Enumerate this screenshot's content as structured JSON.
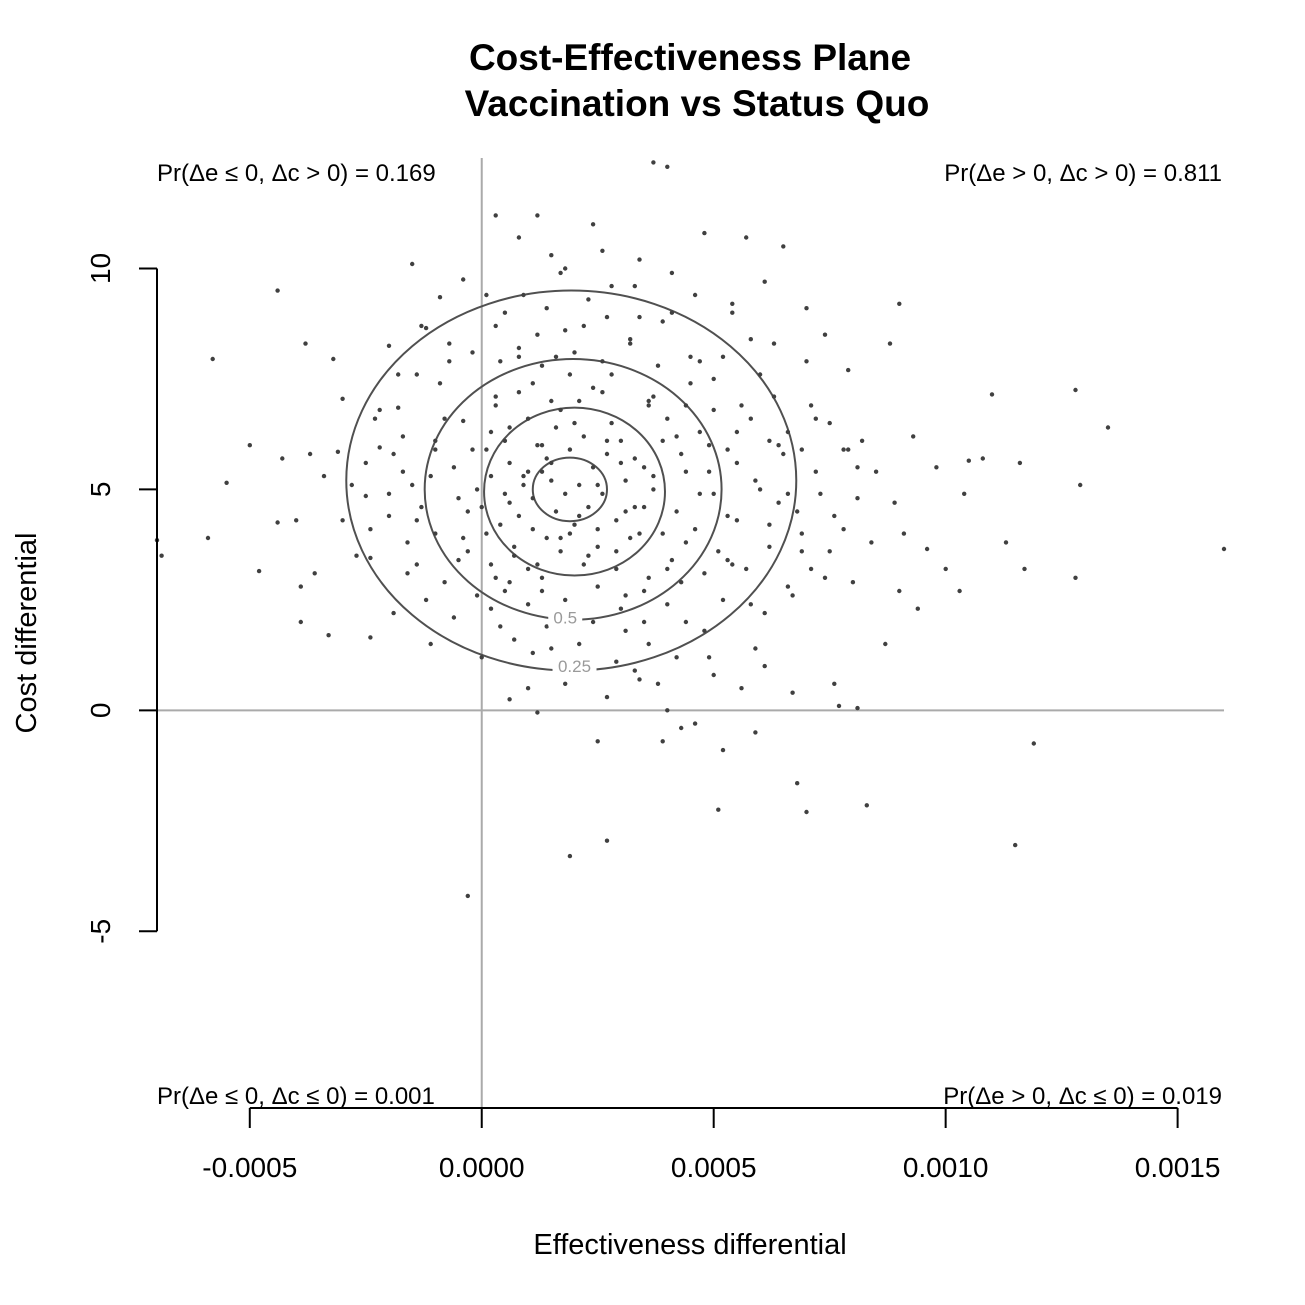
{
  "chart_data": {
    "type": "scatter",
    "title": "Cost-Effectiveness Plane",
    "subtitle": "Vaccination vs Status Quo",
    "xlabel": "Effectiveness differential",
    "ylabel": "Cost differential",
    "xlim": [
      -0.0007,
      0.0016
    ],
    "ylim": [
      -9,
      12.5
    ],
    "xticks": [
      -0.0005,
      0.0,
      0.0005,
      0.001,
      0.0015
    ],
    "xtick_labels": [
      "-0.0005",
      "0.0000",
      "0.0005",
      "0.0010",
      "0.0015"
    ],
    "yticks": [
      -5,
      0,
      5,
      10
    ],
    "ytick_labels": [
      "-5",
      "0",
      "5",
      "10"
    ],
    "reference_lines": {
      "x": 0,
      "y": 0,
      "color": "#aaaaaa"
    },
    "point_color": "#404040",
    "contour_color": "#505050",
    "contour_label_color": "#9a9a9a",
    "quadrants": {
      "top_left": {
        "expr": "Pr(Δe ≤ 0, Δc > 0)",
        "value": "0.169"
      },
      "top_right": {
        "expr": "Pr(Δe > 0, Δc > 0)",
        "value": "0.811"
      },
      "bottom_left": {
        "expr": "Pr(Δe ≤ 0, Δc ≤ 0)",
        "value": "0.001"
      },
      "bottom_right": {
        "expr": "Pr(Δe > 0, Δc ≤ 0)",
        "value": "0.019"
      }
    },
    "contours": [
      {
        "level": "0.25",
        "label": "0.25",
        "cx": 0.000193,
        "cy": 5.2,
        "rx": 0.000485,
        "ry": 4.3,
        "label_x": 0.0002,
        "label_y": 1.0
      },
      {
        "level": "0.5",
        "label": "0.5",
        "cx": 0.000197,
        "cy": 5.0,
        "rx": 0.00032,
        "ry": 2.95,
        "label_x": 0.00018,
        "label_y": 2.1
      },
      {
        "level": "0.75",
        "label": "",
        "cx": 0.0002,
        "cy": 4.95,
        "rx": 0.000195,
        "ry": 1.9
      },
      {
        "level": "0.95",
        "label": "",
        "cx": 0.00019,
        "cy": 5.0,
        "rx": 8e-05,
        "ry": 0.72
      }
    ],
    "points": [
      [
        -0.00069,
        3.5
      ],
      [
        -0.0007,
        3.85
      ],
      [
        -0.00059,
        3.9
      ],
      [
        -0.00058,
        7.95
      ],
      [
        -0.00055,
        5.15
      ],
      [
        -0.0005,
        6.0
      ],
      [
        -0.00048,
        3.15
      ],
      [
        -0.00044,
        9.5
      ],
      [
        -0.00044,
        4.25
      ],
      [
        -0.00043,
        5.7
      ],
      [
        -0.0004,
        4.3
      ],
      [
        -0.00039,
        2.8
      ],
      [
        -0.00039,
        2.0
      ],
      [
        -0.00038,
        8.3
      ],
      [
        -0.00037,
        5.8
      ],
      [
        -0.00036,
        3.1
      ],
      [
        -0.00034,
        5.3
      ],
      [
        -0.00033,
        1.7
      ],
      [
        -0.00032,
        7.95
      ],
      [
        -0.00031,
        5.85
      ],
      [
        -0.0003,
        4.3
      ],
      [
        -0.0003,
        7.05
      ],
      [
        -0.00028,
        5.1
      ],
      [
        -0.00027,
        3.5
      ],
      [
        -0.00025,
        4.85
      ],
      [
        -0.00024,
        3.45
      ],
      [
        -0.00024,
        1.65
      ],
      [
        -0.00023,
        6.6
      ],
      [
        -0.00022,
        5.95
      ],
      [
        -0.0002,
        8.25
      ],
      [
        -0.0002,
        4.4
      ],
      [
        -0.00019,
        2.2
      ],
      [
        -0.00018,
        6.85
      ],
      [
        -0.00017,
        5.4
      ],
      [
        -0.00016,
        3.8
      ],
      [
        -0.00015,
        10.1
      ],
      [
        -0.00014,
        7.6
      ],
      [
        -0.00014,
        3.3
      ],
      [
        -0.00013,
        4.6
      ],
      [
        -0.00012,
        8.65
      ],
      [
        -0.00011,
        1.5
      ],
      [
        -0.0001,
        6.1
      ],
      [
        -0.0001,
        4.0
      ],
      [
        -9e-05,
        9.35
      ],
      [
        -8e-05,
        2.9
      ],
      [
        -7e-05,
        7.9
      ],
      [
        -6e-05,
        5.5
      ],
      [
        -5e-05,
        3.4
      ],
      [
        -4e-05,
        9.75
      ],
      [
        -4e-05,
        6.55
      ],
      [
        -3e-05,
        -4.2
      ],
      [
        -3e-05,
        4.5
      ],
      [
        -2e-05,
        8.1
      ],
      [
        -1e-05,
        2.6
      ],
      [
        0.0,
        1.2
      ],
      [
        1e-05,
        9.4
      ],
      [
        1e-05,
        5.9
      ],
      [
        2e-05,
        3.3
      ],
      [
        3e-05,
        11.2
      ],
      [
        3e-05,
        7.1
      ],
      [
        4e-05,
        1.9
      ],
      [
        5e-05,
        4.9
      ],
      [
        5e-05,
        9.0
      ],
      [
        6e-05,
        6.4
      ],
      [
        6e-05,
        0.25
      ],
      [
        7e-05,
        3.7
      ],
      [
        8e-05,
        10.7
      ],
      [
        8e-05,
        8.2
      ],
      [
        9e-05,
        5.3
      ],
      [
        0.0001,
        2.4
      ],
      [
        0.0001,
        0.5
      ],
      [
        0.00011,
        7.4
      ],
      [
        0.00011,
        4.1
      ],
      [
        0.00012,
        11.2
      ],
      [
        0.00012,
        -0.05
      ],
      [
        0.00013,
        6.0
      ],
      [
        0.00013,
        3.0
      ],
      [
        0.00014,
        9.1
      ],
      [
        0.00015,
        1.4
      ],
      [
        0.00015,
        5.6
      ],
      [
        0.00016,
        8.0
      ],
      [
        0.00017,
        3.9
      ],
      [
        0.00018,
        10.0
      ],
      [
        0.00018,
        0.6
      ],
      [
        0.00019,
        -3.3
      ],
      [
        0.0002,
        6.5
      ],
      [
        0.0002,
        2.1
      ],
      [
        0.00021,
        4.4
      ],
      [
        0.00022,
        8.7
      ],
      [
        0.00023,
        1.0
      ],
      [
        0.00024,
        11.0
      ],
      [
        0.00025,
        -0.7
      ],
      [
        0.00025,
        5.1
      ],
      [
        0.00026,
        7.2
      ],
      [
        0.00027,
        -2.95
      ],
      [
        0.00027,
        0.3
      ],
      [
        0.00028,
        9.6
      ],
      [
        0.00029,
        3.6
      ],
      [
        0.0003,
        6.1
      ],
      [
        0.00031,
        1.8
      ],
      [
        0.00032,
        8.4
      ],
      [
        0.00033,
        4.6
      ],
      [
        0.00034,
        10.2
      ],
      [
        0.00034,
        0.7
      ],
      [
        0.00035,
        2.7
      ],
      [
        0.00036,
        7.0
      ],
      [
        0.00037,
        12.4
      ],
      [
        0.00037,
        5.3
      ],
      [
        0.00038,
        0.6
      ],
      [
        0.00039,
        -0.7
      ],
      [
        0.0004,
        12.3
      ],
      [
        0.0004,
        0.0
      ],
      [
        0.0004,
        3.2
      ],
      [
        0.00041,
        9.0
      ],
      [
        0.00042,
        6.2
      ],
      [
        0.00043,
        -0.4
      ],
      [
        0.00044,
        2.0
      ],
      [
        0.00045,
        8.0
      ],
      [
        0.00046,
        -0.3
      ],
      [
        0.00047,
        4.9
      ],
      [
        0.00048,
        10.8
      ],
      [
        0.00049,
        1.2
      ],
      [
        0.0005,
        6.8
      ],
      [
        0.0005,
        0.8
      ],
      [
        0.00051,
        -2.25
      ],
      [
        0.00052,
        -0.9
      ],
      [
        0.00053,
        3.4
      ],
      [
        0.00054,
        9.2
      ],
      [
        0.00055,
        5.6
      ],
      [
        0.00056,
        0.5
      ],
      [
        0.00057,
        10.7
      ],
      [
        0.00058,
        2.4
      ],
      [
        0.00059,
        -0.5
      ],
      [
        0.0006,
        7.6
      ],
      [
        0.00061,
        1.0
      ],
      [
        0.00062,
        4.2
      ],
      [
        0.00063,
        8.3
      ],
      [
        0.00064,
        6.0
      ],
      [
        0.00065,
        10.5
      ],
      [
        0.00066,
        2.8
      ],
      [
        0.00067,
        0.4
      ],
      [
        0.00068,
        -1.65
      ],
      [
        0.00069,
        4.0
      ],
      [
        0.0007,
        9.1
      ],
      [
        0.0007,
        -2.3
      ],
      [
        0.00071,
        3.2
      ],
      [
        0.00072,
        6.6
      ],
      [
        0.00073,
        4.9
      ],
      [
        0.00074,
        8.5
      ],
      [
        0.00075,
        3.6
      ],
      [
        0.00076,
        0.6
      ],
      [
        0.00077,
        0.1
      ],
      [
        0.00078,
        5.9
      ],
      [
        0.00079,
        7.7
      ],
      [
        0.0008,
        2.9
      ],
      [
        0.00081,
        4.8
      ],
      [
        0.00081,
        0.05
      ],
      [
        0.00082,
        6.1
      ],
      [
        0.00083,
        -2.15
      ],
      [
        0.00084,
        3.8
      ],
      [
        0.00085,
        5.4
      ],
      [
        0.00087,
        1.5
      ],
      [
        0.00088,
        8.3
      ],
      [
        0.00089,
        4.7
      ],
      [
        0.0009,
        2.7
      ],
      [
        0.0009,
        9.2
      ],
      [
        0.00091,
        4.0
      ],
      [
        0.00093,
        6.2
      ],
      [
        0.00094,
        2.3
      ],
      [
        0.00096,
        3.65
      ],
      [
        0.00098,
        5.5
      ],
      [
        0.001,
        3.2
      ],
      [
        0.00103,
        2.7
      ],
      [
        0.00104,
        4.9
      ],
      [
        0.00105,
        5.65
      ],
      [
        0.00108,
        5.7
      ],
      [
        0.0011,
        7.15
      ],
      [
        0.00113,
        3.8
      ],
      [
        0.00115,
        -3.05
      ],
      [
        0.00116,
        5.6
      ],
      [
        0.00117,
        3.2
      ],
      [
        0.00119,
        -0.75
      ],
      [
        0.00128,
        7.25
      ],
      [
        0.00128,
        3.0
      ],
      [
        0.00129,
        5.1
      ],
      [
        0.00135,
        6.4
      ],
      [
        0.0016,
        3.65
      ],
      [
        0.00018,
        4.9
      ],
      [
        0.00015,
        5.2
      ],
      [
        0.00021,
        5.1
      ],
      [
        0.00023,
        4.6
      ],
      [
        0.00016,
        4.5
      ],
      [
        0.00013,
        5.4
      ],
      [
        0.00024,
        5.5
      ],
      [
        0.0002,
        4.2
      ],
      [
        0.00011,
        4.8
      ],
      [
        0.00026,
        4.9
      ],
      [
        0.00019,
        5.9
      ],
      [
        0.00014,
        3.9
      ],
      [
        0.00027,
        5.8
      ],
      [
        9e-05,
        5.1
      ],
      [
        0.00029,
        4.3
      ],
      [
        0.00022,
        6.2
      ],
      [
        8e-05,
        4.4
      ],
      [
        0.00031,
        5.2
      ],
      [
        0.00017,
        3.6
      ],
      [
        0.00012,
        6.0
      ],
      [
        0.00033,
        5.7
      ],
      [
        6e-05,
        5.6
      ],
      [
        0.00025,
        3.7
      ],
      [
        0.00035,
        4.6
      ],
      [
        4e-05,
        4.2
      ],
      [
        0.00028,
        6.5
      ],
      [
        0.0001,
        6.6
      ],
      [
        0.00037,
        5.0
      ],
      [
        2e-05,
        5.3
      ],
      [
        0.00032,
        3.9
      ],
      [
        7e-05,
        3.5
      ],
      [
        0.00039,
        6.1
      ],
      [
        0.0,
        4.6
      ],
      [
        0.00036,
        6.9
      ],
      [
        0.00015,
        7.0
      ],
      [
        0.00042,
        4.5
      ],
      [
        -2e-05,
        5.9
      ],
      [
        0.00024,
        7.3
      ],
      [
        0.00044,
        5.4
      ],
      [
        3e-05,
        6.9
      ],
      [
        0.00041,
        3.4
      ],
      [
        0.00047,
        6.3
      ],
      [
        -5e-05,
        4.8
      ],
      [
        0.0005,
        4.9
      ],
      [
        0.00045,
        7.4
      ],
      [
        0.00053,
        5.9
      ],
      [
        -8e-05,
        6.6
      ],
      [
        0.00055,
        4.3
      ],
      [
        6e-05,
        2.9
      ],
      [
        0.00058,
        6.6
      ],
      [
        0.0006,
        5.0
      ],
      [
        -0.00011,
        5.3
      ],
      [
        0.00062,
        3.7
      ],
      [
        0.00018,
        2.5
      ],
      [
        0.00065,
        5.8
      ],
      [
        0.00031,
        2.6
      ],
      [
        -0.00014,
        4.3
      ],
      [
        0.00068,
        4.5
      ],
      [
        0.00043,
        2.9
      ],
      [
        0.00052,
        8.0
      ],
      [
        -0.00017,
        6.2
      ],
      [
        0.00012,
        8.5
      ],
      [
        0.00027,
        8.9
      ],
      [
        0.00057,
        3.2
      ],
      [
        -0.0002,
        4.9
      ],
      [
        0.00072,
        5.4
      ],
      [
        4e-05,
        7.9
      ],
      [
        0.00039,
        8.8
      ],
      [
        0.00063,
        7.1
      ],
      [
        -9e-05,
        7.4
      ],
      [
        0.00048,
        1.8
      ],
      [
        0.00021,
        1.5
      ],
      [
        0.00075,
        6.5
      ],
      [
        -0.00022,
        6.8
      ],
      [
        0.00014,
        1.9
      ],
      [
        0.00061,
        2.2
      ],
      [
        0.00033,
        9.6
      ],
      [
        -0.00016,
        3.1
      ],
      [
        0.00067,
        2.6
      ],
      [
        2e-05,
        2.3
      ],
      [
        0.00054,
        9.0
      ],
      [
        0.00078,
        4.1
      ],
      [
        -0.00025,
        5.6
      ],
      [
        0.00017,
        9.9
      ],
      [
        0.0007,
        7.9
      ],
      [
        0.00036,
        1.5
      ],
      [
        -0.00013,
        8.7
      ],
      [
        0.00046,
        9.4
      ],
      [
        0.00081,
        5.5
      ],
      [
        -6e-05,
        2.1
      ],
      [
        0.00059,
        1.4
      ],
      [
        9e-05,
        9.4
      ],
      [
        0.00074,
        3.0
      ],
      [
        -0.00018,
        7.6
      ],
      [
        0.00026,
        10.4
      ],
      [
        0.0003,
        5.6
      ],
      [
        0.00034,
        4.0
      ],
      [
        0.00016,
        6.4
      ],
      [
        0.00022,
        3.3
      ],
      [
        0.00028,
        7.6
      ],
      [
        0.0001,
        3.2
      ],
      [
        0.00038,
        7.8
      ],
      [
        5e-05,
        6.1
      ],
      [
        0.00044,
        3.8
      ],
      [
        0.0002,
        8.1
      ],
      [
        0.00049,
        6.0
      ],
      [
        0.00013,
        2.7
      ],
      [
        0.00025,
        2.8
      ],
      [
        0.00056,
        6.9
      ],
      [
        1e-05,
        4.0
      ],
      [
        0.0004,
        2.4
      ],
      [
        8e-05,
        8.0
      ],
      [
        0.00051,
        3.6
      ],
      [
        0.00032,
        8.3
      ],
      [
        0.00064,
        4.7
      ],
      [
        -3e-05,
        3.6
      ],
      [
        0.00019,
        7.6
      ],
      [
        0.00047,
        7.9
      ],
      [
        0.00035,
        2.0
      ],
      [
        0.00011,
        1.3
      ],
      [
        0.00066,
        6.3
      ],
      [
        0.00029,
        1.1
      ],
      [
        3e-05,
        8.7
      ],
      [
        0.00058,
        8.4
      ],
      [
        -0.00012,
        2.5
      ],
      [
        0.00023,
        9.3
      ],
      [
        0.00042,
        1.2
      ],
      [
        0.00069,
        3.6
      ],
      [
        7e-05,
        1.6
      ],
      [
        0.00041,
        9.9
      ],
      [
        -0.00019,
        5.8
      ],
      [
        0.00061,
        9.7
      ],
      [
        0.00076,
        4.4
      ],
      [
        -7e-05,
        8.3
      ],
      [
        0.00015,
        10.3
      ],
      [
        0.00052,
        2.5
      ],
      [
        0.00071,
        6.9
      ],
      [
        -0.00024,
        4.1
      ],
      [
        0.00033,
        0.9
      ],
      [
        0.00079,
        5.9
      ],
      [
        0.00019,
        4.0
      ],
      [
        0.00025,
        4.1
      ],
      [
        0.00014,
        5.7
      ],
      [
        0.00027,
        6.1
      ],
      [
        0.0001,
        5.4
      ],
      [
        0.00031,
        4.5
      ],
      [
        0.00017,
        6.8
      ],
      [
        0.00023,
        3.5
      ],
      [
        0.00035,
        5.5
      ],
      [
        6e-05,
        4.7
      ],
      [
        0.00021,
        7.0
      ],
      [
        0.00039,
        4.0
      ],
      [
        0.00012,
        3.3
      ],
      [
        0.00029,
        3.2
      ],
      [
        0.00043,
        5.8
      ],
      [
        2e-05,
        6.3
      ],
      [
        0.00046,
        4.1
      ],
      [
        0.00016,
        2.2
      ],
      [
        0.00037,
        7.1
      ],
      [
        0.00049,
        5.4
      ],
      [
        -1e-05,
        5.0
      ],
      [
        0.0004,
        6.6
      ],
      [
        0.00053,
        4.4
      ],
      [
        8e-05,
        7.2
      ],
      [
        0.00044,
        6.9
      ],
      [
        0.00026,
        7.9
      ],
      [
        0.00055,
        6.3
      ],
      [
        -4e-05,
        3.9
      ],
      [
        0.0003,
        2.3
      ],
      [
        0.00059,
        5.2
      ],
      [
        5e-05,
        2.7
      ],
      [
        0.00048,
        3.1
      ],
      [
        0.00018,
        8.6
      ],
      [
        0.00062,
        6.1
      ],
      [
        -0.0001,
        5.9
      ],
      [
        0.00036,
        3.0
      ],
      [
        0.00066,
        4.9
      ],
      [
        0.00013,
        7.8
      ],
      [
        0.00034,
        8.9
      ],
      [
        0.00054,
        3.3
      ],
      [
        -0.00015,
        5.1
      ],
      [
        0.00069,
        5.9
      ],
      [
        3e-05,
        3.0
      ],
      [
        0.0005,
        7.5
      ],
      [
        0.00024,
        2.0
      ]
    ]
  }
}
